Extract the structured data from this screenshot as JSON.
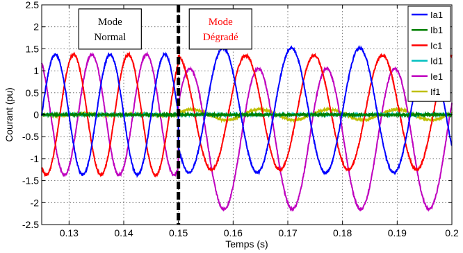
{
  "chart_data": {
    "type": "line",
    "xlabel": "Temps (s)",
    "ylabel": "Courant (pu)",
    "xlim": [
      0.125,
      0.2
    ],
    "ylim": [
      -2.5,
      2.5
    ],
    "x_ticks": [
      0.13,
      0.14,
      0.15,
      0.16,
      0.17,
      0.18,
      0.19,
      0.2
    ],
    "x_tick_labels": [
      "0.13",
      "0.14",
      "0.15",
      "0.16",
      "0.17",
      "0.18",
      "0.19",
      "0.2"
    ],
    "y_ticks": [
      -2.5,
      -2,
      -1.5,
      -1,
      -0.5,
      0,
      0.5,
      1,
      1.5,
      2,
      2.5
    ],
    "y_tick_labels": [
      "-2.5",
      "-2",
      "-1.5",
      "-1",
      "-0.5",
      "0",
      "0.5",
      "1",
      "1.5",
      "2",
      "2.5"
    ],
    "grid": true,
    "legend_position": "top-right",
    "fault_time": 0.15,
    "series": [
      {
        "name": "Ia1",
        "color": "#0000ff",
        "before": {
          "amplitude": 1.37,
          "frequency_hz": 100,
          "phase_deg": 180
        },
        "after": {
          "amplitude": 1.42,
          "offset": 0.1,
          "frequency_hz": 80,
          "phase_deg": 215
        }
      },
      {
        "name": "Ib1",
        "color": "#007f00",
        "before": {
          "amplitude": 0,
          "frequency_hz": 100,
          "phase_deg": 0
        },
        "after": {
          "amplitude": 0,
          "frequency_hz": 80,
          "phase_deg": 0
        }
      },
      {
        "name": "Ic1",
        "color": "#ff0000",
        "before": {
          "amplitude": 1.37,
          "frequency_hz": 100,
          "phase_deg": 60
        },
        "after": {
          "amplitude": 1.3,
          "offset": 0.05,
          "frequency_hz": 80,
          "phase_deg": 96
        }
      },
      {
        "name": "Id1",
        "color": "#00bfbf",
        "before": {
          "amplitude": 0,
          "frequency_hz": 100,
          "phase_deg": 0
        },
        "after": {
          "amplitude": 0,
          "frequency_hz": 80,
          "phase_deg": 0
        }
      },
      {
        "name": "Ie1",
        "color": "#bf00bf",
        "before": {
          "amplitude": 1.37,
          "frequency_hz": 100,
          "phase_deg": 300
        },
        "after": {
          "amplitude": 1.6,
          "offset": -0.55,
          "frequency_hz": 80,
          "phase_deg": 30
        }
      },
      {
        "name": "If1",
        "color": "#bfbf00",
        "before": {
          "amplitude": 0.02,
          "frequency_hz": 100,
          "phase_deg": 0
        },
        "after": {
          "amplitude": 0.12,
          "frequency_hz": 80,
          "phase_deg": 20
        }
      }
    ],
    "annotations": [
      {
        "lines": [
          "Mode",
          "Normal"
        ],
        "color": "#000000",
        "x": 0.1375,
        "y": 1.95
      },
      {
        "lines": [
          "Mode",
          "Dégradé"
        ],
        "color": "#ff0000",
        "x": 0.1577,
        "y": 1.95
      }
    ]
  }
}
